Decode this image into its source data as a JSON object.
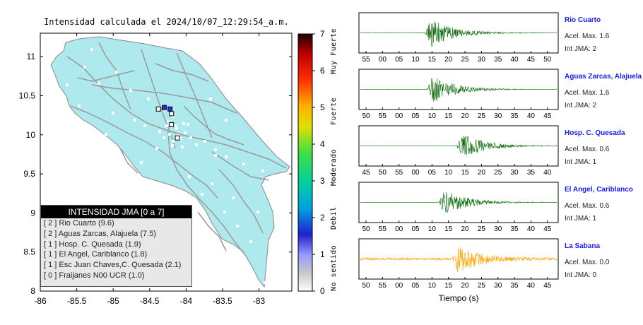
{
  "title": "Intensidad calculada el 2024/10/07_12:29:54_a.m.",
  "map": {
    "lat_ticks": [
      "11",
      "10.5",
      "10",
      "9.5",
      "9",
      "8.5",
      "8"
    ],
    "lon_ticks": [
      "-86",
      "-85.5",
      "-85",
      "-84.5",
      "-84",
      "-83.5",
      "-83"
    ],
    "land_color": "#aee9ee",
    "stations": [
      {
        "lon": -84.38,
        "lat": 10.33,
        "intensity": 2,
        "color": "#ffffff"
      },
      {
        "lon": -84.3,
        "lat": 10.35,
        "intensity": 2,
        "color": "#2a2af0"
      },
      {
        "lon": -84.22,
        "lat": 10.33,
        "intensity": 2,
        "color": "#2a2af0"
      },
      {
        "lon": -84.2,
        "lat": 10.27,
        "intensity": 1,
        "color": "#ffffff"
      },
      {
        "lon": -84.2,
        "lat": 10.13,
        "intensity": 1,
        "color": "#ffffff"
      },
      {
        "lon": -84.12,
        "lat": 9.96,
        "intensity": 0,
        "color": "#ffffff"
      }
    ]
  },
  "legend": {
    "header": "INTENSIDAD JMA [0 a 7]",
    "rows": [
      "[ 2 ] Rio Cuarto (9.6)",
      "[ 2 ] Aguas Zarcas, Alajuela (7.5)",
      "[ 1 ] Hosp. C. Quesada (1.9)",
      "[ 1 ] El Angel, Cariblanco (1.8)",
      "[ 1 ] Esc Juan Chaves,C. Quesada (2.1)",
      "[ 0 ] Fraijanes N00 UCR (1.0)"
    ]
  },
  "colorbar": {
    "ticks": [
      "0",
      "1",
      "2",
      "3",
      "4",
      "5",
      "6",
      "7"
    ],
    "labels": [
      "No sentido",
      "Debil",
      "Moderado",
      "Fuerte",
      "Muy Fuerte"
    ]
  },
  "traces": [
    {
      "name": "Rio Cuarto",
      "acel": "Acel. Max. 1.6",
      "int": "Int JMA: 2",
      "ticks": [
        "55",
        "00",
        "05",
        "10",
        "15",
        "20",
        "25",
        "30",
        "35",
        "40",
        "45",
        "50"
      ],
      "onset": 0.33,
      "color": "#0a6b0a",
      "amp": 1.0
    },
    {
      "name": "Aguas Zarcas, Alajuela",
      "acel": "Acel. Max. 1.6",
      "int": "Int JMA: 2",
      "ticks": [
        "50",
        "55",
        "00",
        "05",
        "10",
        "15",
        "20",
        "25",
        "30",
        "35",
        "40",
        "45"
      ],
      "onset": 0.34,
      "color": "#0a6b0a",
      "amp": 0.95
    },
    {
      "name": "Hosp. C. Quesada",
      "acel": "Acel. Max. 0.6",
      "int": "Int JMA: 1",
      "ticks": [
        "45",
        "50",
        "55",
        "00",
        "05",
        "10",
        "15",
        "20",
        "25",
        "30",
        "35",
        "40"
      ],
      "onset": 0.49,
      "color": "#0a6b0a",
      "amp": 0.9
    },
    {
      "name": "El Angel, Cariblanco",
      "acel": "Acel. Max. 0.6",
      "int": "Int JMA: 1",
      "ticks": [
        "50",
        "55",
        "00",
        "05",
        "10",
        "15",
        "20",
        "25",
        "30",
        "35",
        "40",
        "45"
      ],
      "onset": 0.4,
      "color": "#0a6b0a",
      "amp": 0.9
    },
    {
      "name": "La Sabana",
      "acel": "Acel. Max. 0.0",
      "int": "Int JMA: 0",
      "ticks": [
        "50",
        "55",
        "00",
        "05",
        "10",
        "15",
        "20",
        "25",
        "30",
        "35",
        "40",
        "45"
      ],
      "onset": 0.47,
      "color": "#ffa500",
      "amp": 0.95
    }
  ],
  "xlabel": "Tiempo (s)"
}
